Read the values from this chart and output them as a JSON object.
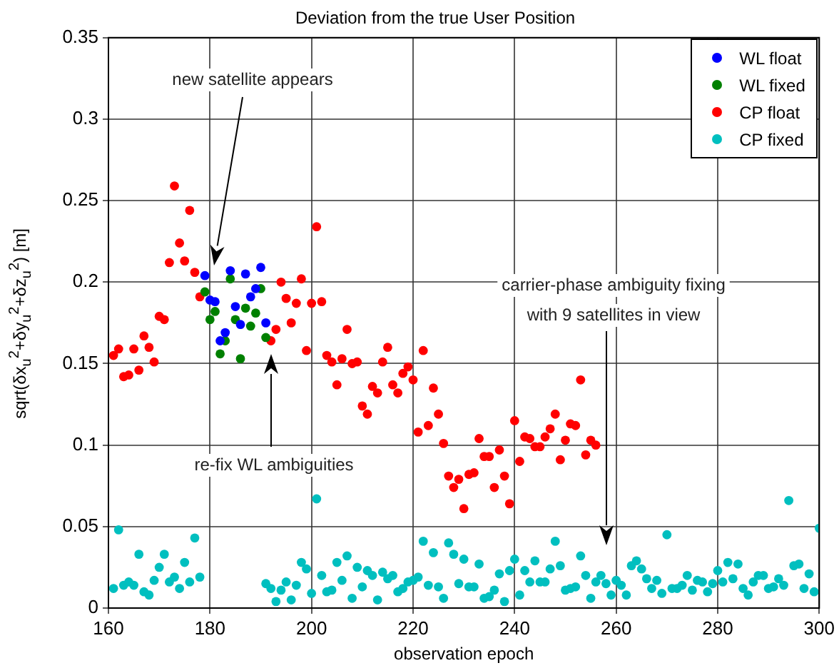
{
  "chart_data": {
    "type": "scatter",
    "title": "Deviation from the true User Position",
    "xlabel": "observation epoch",
    "ylabel": "sqrt(δx$_{u}$$^{2}$+δy$_{u}$$^{2}$+δz$_{u}$$^{2}$) [m]",
    "xlim": [
      160,
      300
    ],
    "xticks": [
      160,
      180,
      200,
      220,
      240,
      260,
      280,
      300
    ],
    "ylim": [
      0,
      0.35
    ],
    "yticks": [
      0,
      0.05,
      0.1,
      0.15,
      0.2,
      0.25,
      0.3,
      0.35
    ],
    "grid": true,
    "legend": "top right",
    "marker": "circle",
    "annotations": [
      "new satellite appears",
      "re-fix WL ambiguities",
      "carrier-phase ambiguity fixing\nwith 9 satellites in view"
    ],
    "series": [
      {
        "name": "WL float",
        "color": "#0000ff",
        "x": [
          179,
          180,
          181,
          182,
          183,
          184,
          185,
          186,
          187,
          188,
          189,
          190,
          191
        ],
        "values": [
          0.204,
          0.189,
          0.188,
          0.164,
          0.169,
          0.207,
          0.185,
          0.174,
          0.205,
          0.191,
          0.196,
          0.209,
          0.175
        ]
      },
      {
        "name": "WL fixed",
        "color": "#008000",
        "x": [
          179,
          180,
          181,
          182,
          183,
          184,
          185,
          186,
          187,
          188,
          189,
          190,
          191
        ],
        "values": [
          0.194,
          0.177,
          0.182,
          0.156,
          0.164,
          0.202,
          0.177,
          0.153,
          0.184,
          0.173,
          0.181,
          0.196,
          0.166
        ]
      },
      {
        "name": "CP float",
        "color": "#ff0000",
        "x": [
          161,
          162,
          163,
          164,
          165,
          166,
          167,
          168,
          169,
          170,
          171,
          172,
          173,
          174,
          175,
          176,
          177,
          178,
          192,
          193,
          194,
          195,
          196,
          197,
          198,
          199,
          200,
          201,
          202,
          203,
          204,
          205,
          206,
          207,
          208,
          209,
          210,
          211,
          212,
          213,
          214,
          215,
          216,
          217,
          218,
          219,
          220,
          221,
          222,
          223,
          224,
          225,
          226,
          227,
          228,
          229,
          230,
          231,
          232,
          233,
          234,
          235,
          236,
          237,
          238,
          239,
          240,
          241,
          242,
          243,
          244,
          245,
          246,
          247,
          248,
          249,
          250,
          251,
          252,
          253,
          254,
          255,
          256
        ],
        "values": [
          0.155,
          0.159,
          0.142,
          0.143,
          0.159,
          0.146,
          0.167,
          0.16,
          0.151,
          0.179,
          0.177,
          0.212,
          0.259,
          0.224,
          0.213,
          0.244,
          0.206,
          0.191,
          0.164,
          0.171,
          0.2,
          0.19,
          0.175,
          0.187,
          0.202,
          0.158,
          0.187,
          0.234,
          0.188,
          0.155,
          0.151,
          0.137,
          0.153,
          0.171,
          0.15,
          0.151,
          0.124,
          0.119,
          0.136,
          0.132,
          0.151,
          0.16,
          0.137,
          0.132,
          0.144,
          0.148,
          0.14,
          0.108,
          0.158,
          0.112,
          0.135,
          0.119,
          0.101,
          0.081,
          0.074,
          0.079,
          0.061,
          0.082,
          0.083,
          0.104,
          0.093,
          0.093,
          0.074,
          0.097,
          0.081,
          0.064,
          0.115,
          0.09,
          0.105,
          0.104,
          0.099,
          0.099,
          0.105,
          0.11,
          0.119,
          0.091,
          0.103,
          0.113,
          0.112,
          0.14,
          0.094,
          0.103,
          0.1
        ]
      },
      {
        "name": "CP fixed",
        "color": "#00bfbf",
        "x": [
          161,
          162,
          163,
          164,
          165,
          166,
          167,
          168,
          169,
          170,
          171,
          172,
          173,
          174,
          175,
          176,
          177,
          178,
          191,
          192,
          193,
          194,
          195,
          196,
          197,
          198,
          199,
          200,
          201,
          202,
          203,
          204,
          205,
          206,
          207,
          208,
          209,
          210,
          211,
          212,
          213,
          214,
          215,
          216,
          217,
          218,
          219,
          220,
          221,
          222,
          223,
          224,
          225,
          226,
          227,
          228,
          229,
          230,
          231,
          232,
          233,
          234,
          235,
          236,
          237,
          238,
          239,
          240,
          241,
          242,
          243,
          244,
          245,
          246,
          247,
          248,
          249,
          250,
          251,
          252,
          253,
          254,
          255,
          256,
          257,
          258,
          259,
          260,
          261,
          262,
          263,
          264,
          265,
          266,
          267,
          268,
          269,
          270,
          271,
          272,
          273,
          274,
          275,
          276,
          277,
          278,
          279,
          280,
          281,
          282,
          283,
          284,
          285,
          286,
          287,
          288,
          289,
          290,
          291,
          292,
          293,
          294,
          295,
          296,
          297,
          298,
          299,
          300
        ],
        "values": [
          0.012,
          0.048,
          0.014,
          0.016,
          0.014,
          0.033,
          0.01,
          0.008,
          0.017,
          0.025,
          0.033,
          0.016,
          0.019,
          0.012,
          0.028,
          0.016,
          0.043,
          0.019,
          0.015,
          0.012,
          0.004,
          0.011,
          0.016,
          0.005,
          0.014,
          0.028,
          0.024,
          0.009,
          0.067,
          0.02,
          0.01,
          0.011,
          0.028,
          0.017,
          0.032,
          0.006,
          0.025,
          0.013,
          0.023,
          0.02,
          0.005,
          0.022,
          0.018,
          0.02,
          0.01,
          0.012,
          0.016,
          0.017,
          0.019,
          0.041,
          0.014,
          0.034,
          0.013,
          0.006,
          0.04,
          0.033,
          0.015,
          0.03,
          0.013,
          0.013,
          0.027,
          0.006,
          0.007,
          0.011,
          0.021,
          0.004,
          0.023,
          0.03,
          0.008,
          0.023,
          0.016,
          0.029,
          0.016,
          0.016,
          0.024,
          0.041,
          0.026,
          0.011,
          0.012,
          0.013,
          0.032,
          0.02,
          0.006,
          0.016,
          0.02,
          0.015,
          0.008,
          0.017,
          0.014,
          0.008,
          0.026,
          0.029,
          0.024,
          0.018,
          0.012,
          0.017,
          0.009,
          0.045,
          0.012,
          0.012,
          0.014,
          0.02,
          0.011,
          0.017,
          0.016,
          0.01,
          0.015,
          0.023,
          0.016,
          0.028,
          0.018,
          0.027,
          0.012,
          0.008,
          0.016,
          0.02,
          0.02,
          0.012,
          0.013,
          0.018,
          0.014,
          0.066,
          0.026,
          0.027,
          0.012,
          0.021,
          0.01,
          0.049
        ]
      }
    ]
  }
}
